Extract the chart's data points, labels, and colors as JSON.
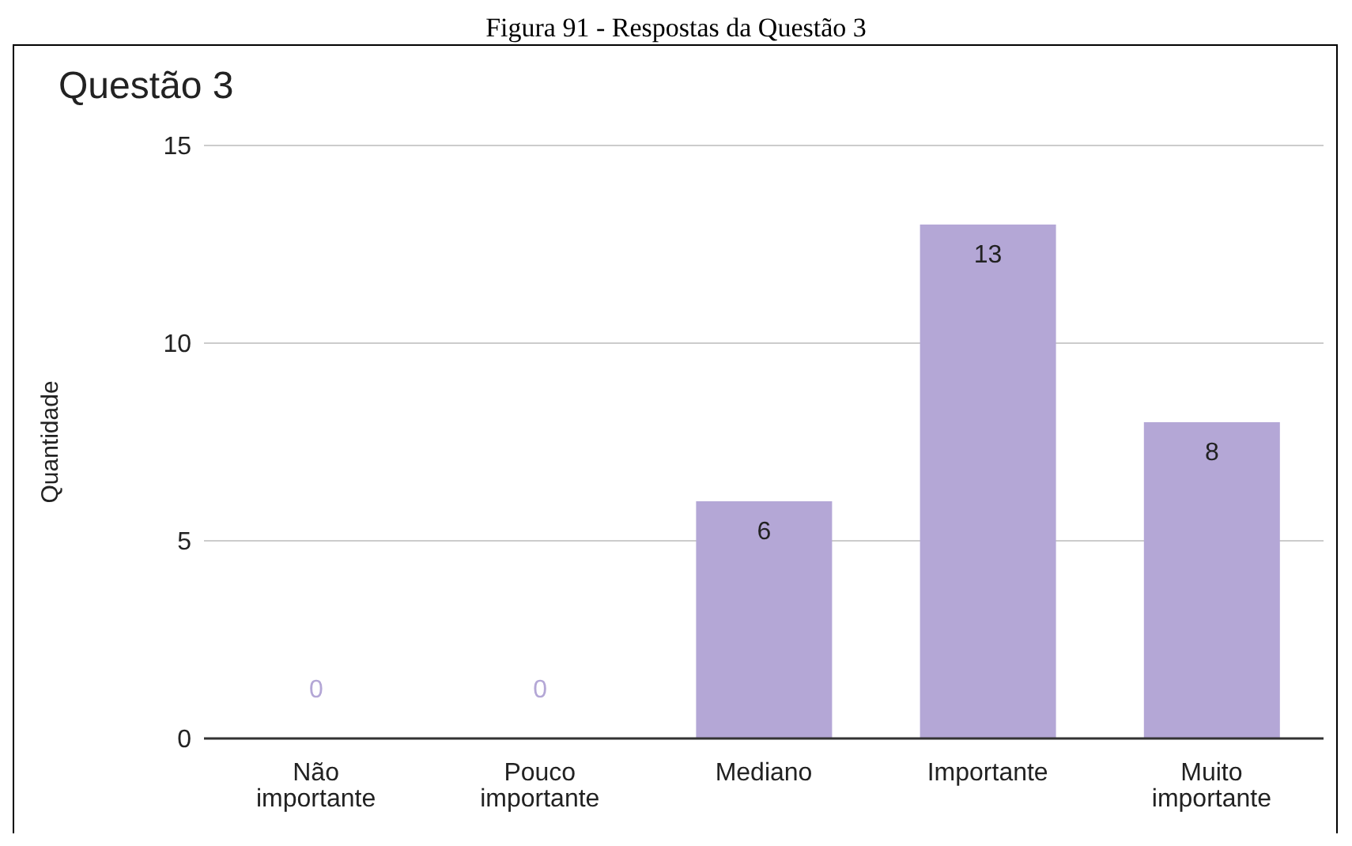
{
  "chart_data": {
    "type": "bar",
    "title": "Questão 3",
    "ylabel": "Quantidade",
    "annotations": [
      "Figura 91 - Respostas da Questão 3"
    ],
    "categories": [
      "Não importante",
      "Pouco importante",
      "Mediano",
      "Importante",
      "Muito importante"
    ],
    "values": [
      0,
      0,
      6,
      13,
      8
    ],
    "color": "#b4a7d6",
    "ylim": [
      0,
      15
    ],
    "yticks": [
      0,
      5,
      10,
      15
    ],
    "grid": "y",
    "data_labels": true
  }
}
